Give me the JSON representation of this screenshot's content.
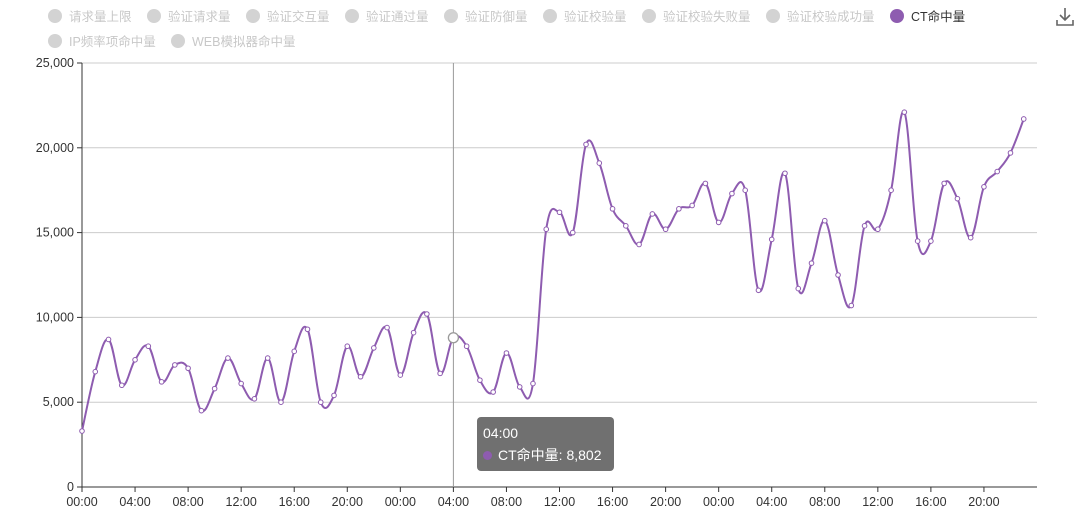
{
  "legend": {
    "items": [
      {
        "label": "请求量上限",
        "active": false
      },
      {
        "label": "验证请求量",
        "active": false
      },
      {
        "label": "验证交互量",
        "active": false
      },
      {
        "label": "验证通过量",
        "active": false
      },
      {
        "label": "验证防御量",
        "active": false
      },
      {
        "label": "验证校验量",
        "active": false
      },
      {
        "label": "验证校验失败量",
        "active": false
      },
      {
        "label": "验证校验成功量",
        "active": false
      },
      {
        "label": "CT命中量",
        "active": true
      },
      {
        "label": "IP频率项命中量",
        "active": false
      },
      {
        "label": "WEB模拟器命中量",
        "active": false
      }
    ]
  },
  "toolbar": {
    "download_icon": "download-icon"
  },
  "colors": {
    "series": "#8e5cb0",
    "axis": "#333333",
    "grid": "#cccccc",
    "legend_inactive": "#d3d3d3"
  },
  "chart_data": {
    "type": "line",
    "smooth": true,
    "ylim": [
      0,
      25000
    ],
    "yticks": [
      "0",
      "5,000",
      "10,000",
      "15,000",
      "20,000",
      "25,000"
    ],
    "xticks": [
      "00:00",
      "04:00",
      "08:00",
      "12:00",
      "16:00",
      "20:00",
      "00:00",
      "04:00",
      "08:00",
      "12:00",
      "16:00",
      "20:00",
      "00:00",
      "04:00",
      "08:00",
      "12:00",
      "16:00",
      "20:00"
    ],
    "grid": "horizontal",
    "series": [
      {
        "name": "CT命中量",
        "values": [
          3300,
          6800,
          8700,
          6000,
          7500,
          8300,
          6200,
          7200,
          7000,
          4500,
          5800,
          7600,
          6100,
          5200,
          7600,
          5000,
          8000,
          9300,
          5000,
          5400,
          8300,
          6500,
          8200,
          9400,
          6600,
          9100,
          10200,
          6700,
          8802,
          8300,
          6300,
          5600,
          7900,
          5900,
          6100,
          15200,
          16200,
          15000,
          20200,
          19100,
          16400,
          15400,
          14300,
          16100,
          15200,
          16400,
          16600,
          17900,
          15600,
          17300,
          17500,
          11600,
          14600,
          18500,
          11700,
          13200,
          15700,
          12500,
          10700,
          15400,
          15200,
          17500,
          22100,
          14500,
          14500,
          17900,
          17000,
          14700,
          17700,
          18600,
          19700,
          21700
        ]
      }
    ],
    "tooltip": {
      "time": "04:00",
      "series": "CT命中量",
      "value": "8,802",
      "index": 28
    }
  }
}
